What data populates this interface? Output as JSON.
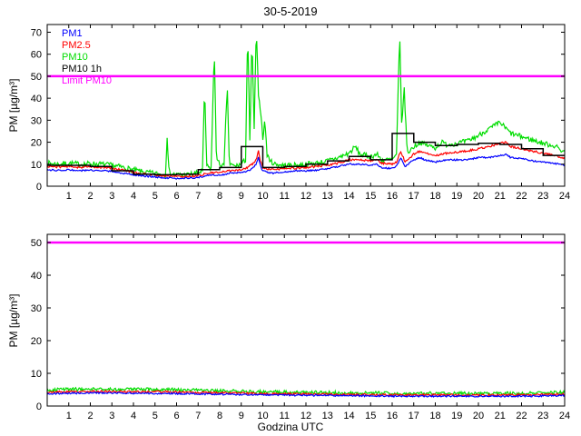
{
  "chart_data": [
    {
      "id": "top",
      "type": "line",
      "title": "30-5-2019",
      "ylabel": "PM [µg/m³]",
      "xlabel": "",
      "xlim": [
        0,
        24
      ],
      "ylim": [
        0,
        73.5
      ],
      "xticks": [
        1,
        2,
        3,
        4,
        5,
        6,
        7,
        8,
        9,
        10,
        11,
        12,
        13,
        14,
        15,
        16,
        17,
        18,
        19,
        20,
        21,
        22,
        23,
        24
      ],
      "yticks": [
        0,
        10,
        20,
        30,
        40,
        50,
        60,
        70
      ],
      "grid": false,
      "legend": {
        "position": "top-left",
        "entries": [
          {
            "label": "PM1",
            "color": "#0000ff"
          },
          {
            "label": "PM2.5",
            "color": "#ff0000"
          },
          {
            "label": "PM10",
            "color": "#00dd00"
          },
          {
            "label": "PM10 1h",
            "color": "#000000"
          },
          {
            "label": "Limit PM10",
            "color": "#ff00ff"
          }
        ]
      },
      "series": [
        {
          "name": "PM10",
          "kind": "noisy",
          "color": "#00dd00",
          "width": 1.2,
          "noise": 1.2,
          "points": [
            [
              0,
              10.5
            ],
            [
              0.5,
              10
            ],
            [
              1,
              10.5
            ],
            [
              1.5,
              10
            ],
            [
              2,
              10.3
            ],
            [
              2.5,
              10
            ],
            [
              3,
              9.5
            ],
            [
              3.5,
              8.6
            ],
            [
              4,
              7.4
            ],
            [
              4.5,
              6.4
            ],
            [
              5,
              5.8
            ],
            [
              5.3,
              5.4
            ],
            [
              5.5,
              5.2
            ],
            [
              5.55,
              25
            ],
            [
              5.65,
              6
            ],
            [
              6,
              5.2
            ],
            [
              6.5,
              5.2
            ],
            [
              7,
              6
            ],
            [
              7.2,
              7
            ],
            [
              7.3,
              45
            ],
            [
              7.4,
              9
            ],
            [
              7.6,
              8
            ],
            [
              7.75,
              62
            ],
            [
              7.85,
              12
            ],
            [
              8,
              10
            ],
            [
              8.2,
              9
            ],
            [
              8.35,
              46
            ],
            [
              8.45,
              10
            ],
            [
              8.7,
              9
            ],
            [
              9,
              10
            ],
            [
              9.2,
              12
            ],
            [
              9.3,
              72
            ],
            [
              9.4,
              20
            ],
            [
              9.5,
              68
            ],
            [
              9.6,
              25
            ],
            [
              9.7,
              73
            ],
            [
              9.8,
              40
            ],
            [
              9.9,
              35
            ],
            [
              10,
              22
            ],
            [
              10.1,
              30
            ],
            [
              10.2,
              14
            ],
            [
              10.4,
              11
            ],
            [
              10.6,
              10
            ],
            [
              11,
              9.5
            ],
            [
              11.5,
              9.5
            ],
            [
              12,
              10
            ],
            [
              12.5,
              10.5
            ],
            [
              13,
              11.5
            ],
            [
              13.5,
              13
            ],
            [
              14,
              15
            ],
            [
              14.3,
              18
            ],
            [
              14.5,
              14.5
            ],
            [
              15,
              13.5
            ],
            [
              15.3,
              14.5
            ],
            [
              15.5,
              12
            ],
            [
              16,
              12
            ],
            [
              16.2,
              14
            ],
            [
              16.35,
              70
            ],
            [
              16.45,
              25
            ],
            [
              16.55,
              46
            ],
            [
              16.7,
              15
            ],
            [
              17,
              18
            ],
            [
              17.3,
              20
            ],
            [
              17.5,
              19
            ],
            [
              18,
              17.5
            ],
            [
              18.3,
              20
            ],
            [
              18.5,
              19
            ],
            [
              19,
              19.5
            ],
            [
              19.5,
              20.5
            ],
            [
              20,
              23
            ],
            [
              20.3,
              25
            ],
            [
              20.5,
              26
            ],
            [
              21,
              29
            ],
            [
              21.3,
              26
            ],
            [
              21.5,
              24
            ],
            [
              22,
              22.5
            ],
            [
              22.5,
              21
            ],
            [
              23,
              19.5
            ],
            [
              23.5,
              18.5
            ],
            [
              24,
              15.5
            ]
          ]
        },
        {
          "name": "PM2.5",
          "kind": "noisy",
          "color": "#ff0000",
          "width": 1.2,
          "noise": 0.45,
          "points": [
            [
              0,
              9
            ],
            [
              0.5,
              8.8
            ],
            [
              1,
              9
            ],
            [
              1.5,
              8.6
            ],
            [
              2,
              8.8
            ],
            [
              2.5,
              8.6
            ],
            [
              3,
              8.2
            ],
            [
              3.5,
              7.4
            ],
            [
              4,
              6.4
            ],
            [
              4.5,
              5.6
            ],
            [
              5,
              5
            ],
            [
              5.5,
              4.6
            ],
            [
              6,
              4.4
            ],
            [
              6.5,
              4.4
            ],
            [
              7,
              4.8
            ],
            [
              7.3,
              5.5
            ],
            [
              7.5,
              6
            ],
            [
              8,
              6.2
            ],
            [
              8.3,
              6.8
            ],
            [
              8.5,
              7.2
            ],
            [
              9,
              7.5
            ],
            [
              9.3,
              8.5
            ],
            [
              9.5,
              10
            ],
            [
              9.7,
              12
            ],
            [
              9.8,
              16
            ],
            [
              9.9,
              11
            ],
            [
              10,
              8.5
            ],
            [
              10.3,
              7.5
            ],
            [
              10.5,
              7.5
            ],
            [
              11,
              8
            ],
            [
              11.5,
              8.2
            ],
            [
              12,
              8.5
            ],
            [
              12.5,
              9
            ],
            [
              13,
              9.5
            ],
            [
              13.5,
              10.5
            ],
            [
              14,
              12
            ],
            [
              14.5,
              12
            ],
            [
              15,
              11.5
            ],
            [
              15.3,
              12
            ],
            [
              15.5,
              10.5
            ],
            [
              16,
              10
            ],
            [
              16.2,
              11
            ],
            [
              16.4,
              16
            ],
            [
              16.6,
              11
            ],
            [
              17,
              14.5
            ],
            [
              17.3,
              16
            ],
            [
              17.5,
              15
            ],
            [
              18,
              14
            ],
            [
              18.5,
              15
            ],
            [
              19,
              15.5
            ],
            [
              19.5,
              16
            ],
            [
              20,
              17
            ],
            [
              20.5,
              18
            ],
            [
              21,
              19.5
            ],
            [
              21.3,
              20
            ],
            [
              21.5,
              18
            ],
            [
              22,
              17
            ],
            [
              22.5,
              16
            ],
            [
              23,
              15
            ],
            [
              23.5,
              14
            ],
            [
              24,
              12.5
            ]
          ]
        },
        {
          "name": "PM1",
          "kind": "noisy",
          "color": "#0000ff",
          "width": 1.2,
          "noise": 0.35,
          "points": [
            [
              0,
              7.5
            ],
            [
              0.5,
              7.2
            ],
            [
              1,
              7.5
            ],
            [
              1.5,
              7
            ],
            [
              2,
              7.3
            ],
            [
              2.5,
              7
            ],
            [
              3,
              6.8
            ],
            [
              3.5,
              6
            ],
            [
              4,
              5.2
            ],
            [
              4.5,
              4.6
            ],
            [
              5,
              4.2
            ],
            [
              5.5,
              3.8
            ],
            [
              6,
              3.6
            ],
            [
              6.5,
              3.6
            ],
            [
              7,
              4
            ],
            [
              7.3,
              4.5
            ],
            [
              7.5,
              5
            ],
            [
              8,
              5
            ],
            [
              8.3,
              5.5
            ],
            [
              8.5,
              6
            ],
            [
              9,
              6
            ],
            [
              9.3,
              7
            ],
            [
              9.5,
              8
            ],
            [
              9.7,
              10
            ],
            [
              9.8,
              13
            ],
            [
              9.9,
              9
            ],
            [
              10,
              7
            ],
            [
              10.3,
              6
            ],
            [
              10.5,
              6
            ],
            [
              11,
              6.5
            ],
            [
              11.5,
              7
            ],
            [
              12,
              7
            ],
            [
              12.5,
              7.3
            ],
            [
              13,
              8
            ],
            [
              13.5,
              9
            ],
            [
              14,
              10
            ],
            [
              14.5,
              10
            ],
            [
              15,
              9.5
            ],
            [
              15.3,
              10
            ],
            [
              15.5,
              8.5
            ],
            [
              16,
              8
            ],
            [
              16.2,
              9
            ],
            [
              16.4,
              13
            ],
            [
              16.6,
              9
            ],
            [
              17,
              12
            ],
            [
              17.3,
              13
            ],
            [
              17.5,
              12
            ],
            [
              18,
              11
            ],
            [
              18.5,
              12
            ],
            [
              19,
              12
            ],
            [
              19.5,
              12
            ],
            [
              20,
              13
            ],
            [
              20.5,
              13
            ],
            [
              21,
              14
            ],
            [
              21.3,
              14.5
            ],
            [
              21.5,
              13
            ],
            [
              22,
              12.5
            ],
            [
              22.5,
              11.5
            ],
            [
              23,
              11
            ],
            [
              23.5,
              10.5
            ],
            [
              24,
              9.5
            ]
          ]
        },
        {
          "name": "PM10 1h",
          "kind": "step",
          "color": "#000000",
          "width": 1.5,
          "values": [
            9.5,
            9.5,
            9,
            7,
            5.5,
            5.2,
            5.5,
            7.5,
            8.5,
            18,
            8.5,
            9,
            10,
            11.5,
            13.5,
            12,
            24,
            20,
            18.5,
            19,
            19.5,
            19,
            17,
            14
          ]
        },
        {
          "name": "Limit PM10",
          "kind": "hline",
          "color": "#ff00ff",
          "width": 2.5,
          "value": 50
        }
      ]
    },
    {
      "id": "bottom",
      "type": "line",
      "title": "",
      "ylabel": "PM [µg/m³]",
      "xlabel": "Godzina UTC",
      "xlim": [
        0,
        24
      ],
      "ylim": [
        0,
        52.5
      ],
      "xticks": [
        1,
        2,
        3,
        4,
        5,
        6,
        7,
        8,
        9,
        10,
        11,
        12,
        13,
        14,
        15,
        16,
        17,
        18,
        19,
        20,
        21,
        22,
        23,
        24
      ],
      "yticks": [
        0,
        10,
        20,
        30,
        40,
        50
      ],
      "grid": false,
      "series": [
        {
          "name": "PM10",
          "kind": "noisy",
          "color": "#00dd00",
          "width": 1.2,
          "noise": 0.5,
          "points": [
            [
              0,
              5
            ],
            [
              2,
              5.2
            ],
            [
              4,
              5.1
            ],
            [
              6,
              5
            ],
            [
              8,
              4.6
            ],
            [
              10,
              4.4
            ],
            [
              12,
              4.2
            ],
            [
              14,
              4
            ],
            [
              16,
              3.9
            ],
            [
              18,
              3.9
            ],
            [
              20,
              3.8
            ],
            [
              22,
              3.9
            ],
            [
              24,
              4.2
            ]
          ]
        },
        {
          "name": "PM2.5",
          "kind": "noisy",
          "color": "#ff0000",
          "width": 1.2,
          "noise": 0.3,
          "points": [
            [
              0,
              4.3
            ],
            [
              2,
              4.5
            ],
            [
              4,
              4.4
            ],
            [
              6,
              4.3
            ],
            [
              8,
              4
            ],
            [
              10,
              3.8
            ],
            [
              12,
              3.7
            ],
            [
              14,
              3.5
            ],
            [
              16,
              3.4
            ],
            [
              18,
              3.4
            ],
            [
              20,
              3.3
            ],
            [
              22,
              3.4
            ],
            [
              24,
              3.6
            ]
          ]
        },
        {
          "name": "PM1",
          "kind": "noisy",
          "color": "#0000ff",
          "width": 1.2,
          "noise": 0.25,
          "points": [
            [
              0,
              3.8
            ],
            [
              2,
              4
            ],
            [
              4,
              3.9
            ],
            [
              6,
              3.8
            ],
            [
              8,
              3.6
            ],
            [
              10,
              3.4
            ],
            [
              12,
              3.3
            ],
            [
              14,
              3.2
            ],
            [
              16,
              3
            ],
            [
              18,
              3
            ],
            [
              20,
              3
            ],
            [
              22,
              3
            ],
            [
              24,
              3.2
            ]
          ]
        },
        {
          "name": "Limit PM10",
          "kind": "hline",
          "color": "#ff00ff",
          "width": 2.5,
          "value": 50
        }
      ]
    }
  ]
}
